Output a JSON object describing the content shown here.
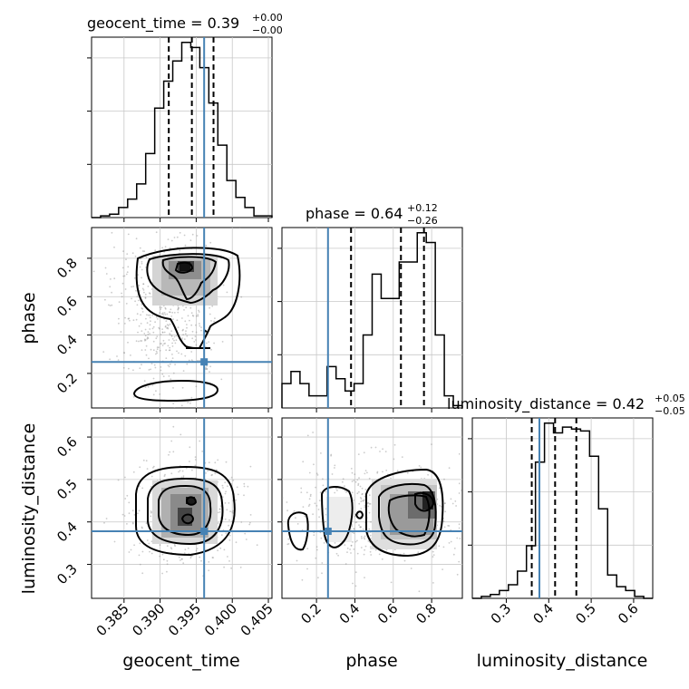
{
  "colors": {
    "truth": "#4682b4",
    "hist": "#000000",
    "quantile": "#000000",
    "grid": "#c8c8c8",
    "scatter": "#8c8c8c"
  },
  "chart_data": {
    "type": "corner",
    "parameters": [
      "geocent_time",
      "phase",
      "luminosity_distance"
    ],
    "axes": {
      "geocent_time": {
        "range": [
          0.3805,
          0.4055
        ],
        "ticks": [
          0.385,
          0.39,
          0.395,
          0.4,
          0.405
        ],
        "tick_labels": [
          "0.385",
          "0.390",
          "0.395",
          "0.400",
          "0.405"
        ]
      },
      "phase": {
        "range": [
          0.02,
          0.96
        ],
        "ticks": [
          0.2,
          0.4,
          0.6,
          0.8
        ],
        "tick_labels": [
          "0.2",
          "0.4",
          "0.6",
          "0.8"
        ]
      },
      "luminosity_distance": {
        "range": [
          0.22,
          0.645
        ],
        "ticks": [
          0.3,
          0.4,
          0.5,
          0.6
        ],
        "tick_labels": [
          "0.3",
          "0.4",
          "0.5",
          "0.6"
        ]
      }
    },
    "truths": {
      "geocent_time": 0.3961,
      "phase": 0.26,
      "luminosity_distance": 0.378
    },
    "titles": [
      {
        "param": "geocent_time",
        "text": "geocent_time = 0.39",
        "plus": "+0.00",
        "minus": "−0.00"
      },
      {
        "param": "phase",
        "text": "phase = 0.64",
        "plus": "+0.12",
        "minus": "−0.26"
      },
      {
        "param": "luminosity_distance",
        "text": "luminosity_distance = 0.42",
        "plus": "+0.05",
        "minus": "−0.05"
      }
    ],
    "histograms": {
      "geocent_time": {
        "edges_start": 0.3805,
        "bin_width": 0.00125,
        "counts": [
          0,
          1,
          2,
          6,
          11,
          20,
          38,
          65,
          81,
          93,
          104,
          101,
          89,
          68,
          43,
          22,
          12,
          6,
          1,
          1
        ],
        "quantiles": [
          0.3912,
          0.3944,
          0.3974
        ]
      },
      "phase": {
        "edges_start": 0.02,
        "bin_width": 0.047,
        "counts": [
          10,
          15,
          10,
          5,
          5,
          17,
          12,
          7,
          10,
          30,
          55,
          45,
          45,
          60,
          60,
          72,
          68,
          30,
          5,
          1
        ],
        "quantiles": [
          0.38,
          0.64,
          0.76
        ]
      },
      "luminosity_distance": {
        "edges_start": 0.22,
        "bin_width": 0.02125,
        "counts": [
          0,
          1,
          2,
          4,
          7,
          14,
          27,
          70,
          90,
          85,
          88,
          87,
          86,
          73,
          46,
          12,
          6,
          4,
          1,
          0
        ],
        "quantiles": [
          0.36,
          0.415,
          0.465
        ]
      }
    },
    "grid": true
  }
}
